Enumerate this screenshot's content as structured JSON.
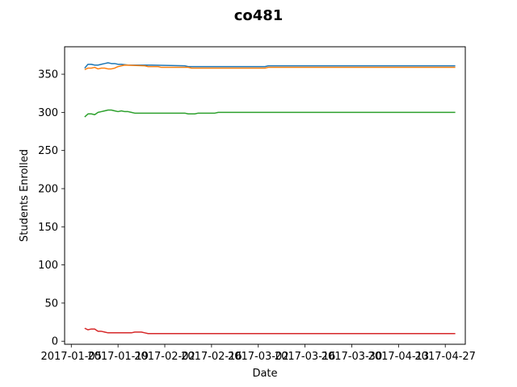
{
  "chart_data": {
    "type": "line",
    "title": "co481",
    "xlabel": "Date",
    "ylabel": "Students Enrolled",
    "x_ticks": [
      "2017-01-05",
      "2017-01-19",
      "2017-02-02",
      "2017-02-16",
      "2017-03-02",
      "2017-03-16",
      "2017-03-30",
      "2017-04-13",
      "2017-04-27"
    ],
    "y_ticks": [
      0,
      50,
      100,
      150,
      200,
      250,
      300,
      350
    ],
    "xlim": [
      "2017-01-03",
      "2017-05-03"
    ],
    "ylim": [
      -4,
      386
    ],
    "grid": false,
    "series": [
      {
        "color": "#1f77b4",
        "points": [
          [
            "2017-01-09",
            358
          ],
          [
            "2017-01-10",
            363
          ],
          [
            "2017-01-11",
            363
          ],
          [
            "2017-01-12",
            362
          ],
          [
            "2017-01-13",
            362
          ],
          [
            "2017-01-14",
            363
          ],
          [
            "2017-01-15",
            364
          ],
          [
            "2017-01-16",
            365
          ],
          [
            "2017-01-17",
            364
          ],
          [
            "2017-01-18",
            364
          ],
          [
            "2017-01-19",
            363
          ],
          [
            "2017-01-20",
            363
          ],
          [
            "2017-01-22",
            362
          ],
          [
            "2017-01-29",
            362
          ],
          [
            "2017-02-08",
            361
          ],
          [
            "2017-02-09",
            360
          ],
          [
            "2017-03-04",
            360
          ],
          [
            "2017-03-05",
            361
          ],
          [
            "2017-04-30",
            361
          ]
        ]
      },
      {
        "color": "#ff7f0e",
        "points": [
          [
            "2017-01-09",
            356
          ],
          [
            "2017-01-10",
            358
          ],
          [
            "2017-01-11",
            358
          ],
          [
            "2017-01-12",
            359
          ],
          [
            "2017-01-13",
            357
          ],
          [
            "2017-01-14",
            358
          ],
          [
            "2017-01-15",
            358
          ],
          [
            "2017-01-16",
            357
          ],
          [
            "2017-01-17",
            357
          ],
          [
            "2017-01-18",
            358
          ],
          [
            "2017-01-19",
            360
          ],
          [
            "2017-01-20",
            361
          ],
          [
            "2017-01-21",
            362
          ],
          [
            "2017-01-27",
            361
          ],
          [
            "2017-01-28",
            360
          ],
          [
            "2017-01-31",
            360
          ],
          [
            "2017-02-01",
            359
          ],
          [
            "2017-02-09",
            359
          ],
          [
            "2017-02-10",
            358
          ],
          [
            "2017-03-04",
            358
          ],
          [
            "2017-03-05",
            359
          ],
          [
            "2017-04-30",
            359
          ]
        ]
      },
      {
        "color": "#2ca02c",
        "points": [
          [
            "2017-01-09",
            294
          ],
          [
            "2017-01-10",
            298
          ],
          [
            "2017-01-11",
            298
          ],
          [
            "2017-01-12",
            297
          ],
          [
            "2017-01-13",
            300
          ],
          [
            "2017-01-14",
            301
          ],
          [
            "2017-01-15",
            302
          ],
          [
            "2017-01-16",
            303
          ],
          [
            "2017-01-17",
            303
          ],
          [
            "2017-01-18",
            302
          ],
          [
            "2017-01-19",
            301
          ],
          [
            "2017-01-20",
            302
          ],
          [
            "2017-01-21",
            301
          ],
          [
            "2017-01-22",
            301
          ],
          [
            "2017-01-23",
            300
          ],
          [
            "2017-01-24",
            299
          ],
          [
            "2017-02-08",
            299
          ],
          [
            "2017-02-09",
            298
          ],
          [
            "2017-02-11",
            298
          ],
          [
            "2017-02-12",
            299
          ],
          [
            "2017-02-17",
            299
          ],
          [
            "2017-02-18",
            300
          ],
          [
            "2017-04-30",
            300
          ]
        ]
      },
      {
        "color": "#d62728",
        "points": [
          [
            "2017-01-09",
            17
          ],
          [
            "2017-01-10",
            15
          ],
          [
            "2017-01-11",
            16
          ],
          [
            "2017-01-12",
            16
          ],
          [
            "2017-01-13",
            13
          ],
          [
            "2017-01-14",
            13
          ],
          [
            "2017-01-15",
            12
          ],
          [
            "2017-01-16",
            11
          ],
          [
            "2017-01-23",
            11
          ],
          [
            "2017-01-24",
            12
          ],
          [
            "2017-01-26",
            12
          ],
          [
            "2017-01-27",
            11
          ],
          [
            "2017-01-28",
            10
          ],
          [
            "2017-04-30",
            10
          ]
        ]
      }
    ]
  }
}
